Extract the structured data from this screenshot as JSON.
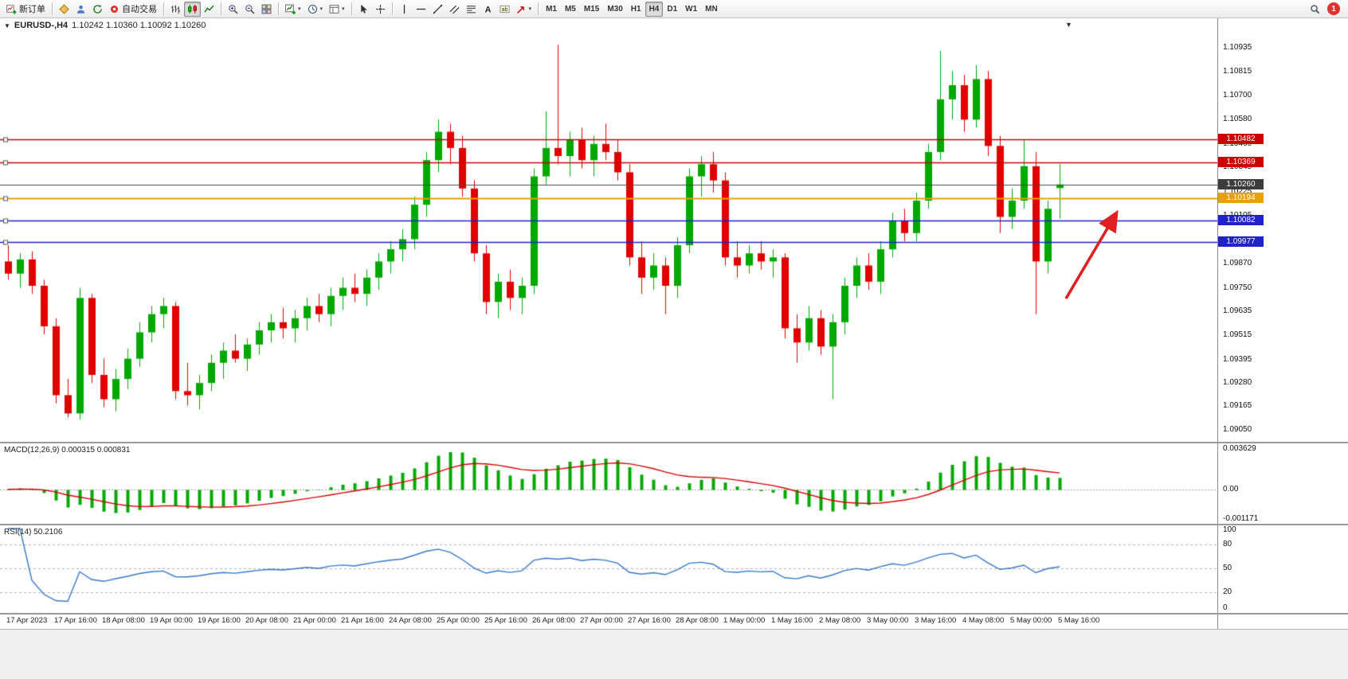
{
  "toolbar": {
    "groups": [
      {
        "items": [
          {
            "name": "new-order-button",
            "icon": "chart-plus",
            "label": "新订单"
          }
        ]
      },
      {
        "items": [
          {
            "name": "market-watch-button",
            "icon": "diamond"
          },
          {
            "name": "data-window-button",
            "icon": "person"
          },
          {
            "name": "refresh-button",
            "icon": "refresh"
          },
          {
            "name": "autotrading-button",
            "icon": "dot-red",
            "label": "自动交易"
          }
        ]
      },
      {
        "items": [
          {
            "name": "bar-chart-button",
            "icon": "bars"
          },
          {
            "name": "candlestick-chart-button",
            "icon": "candles",
            "active": true
          },
          {
            "name": "line-chart-button",
            "icon": "linechart"
          }
        ]
      },
      {
        "items": [
          {
            "name": "zoom-in-button",
            "icon": "zoom-in"
          },
          {
            "name": "zoom-out-button",
            "icon": "zoom-out"
          },
          {
            "name": "tile-windows-button",
            "icon": "tile"
          }
        ]
      },
      {
        "items": [
          {
            "name": "new-chart-button",
            "icon": "new-chart",
            "caret": true
          },
          {
            "name": "profiles-button",
            "icon": "clock",
            "caret": true
          },
          {
            "name": "templates-button",
            "icon": "template",
            "caret": true
          }
        ]
      },
      {
        "items": [
          {
            "name": "cursor-button",
            "icon": "cursor"
          },
          {
            "name": "crosshair-button",
            "icon": "crosshair"
          }
        ]
      },
      {
        "items": [
          {
            "name": "vertical-line-button",
            "icon": "vline"
          },
          {
            "name": "horizontal-line-button",
            "icon": "hline"
          },
          {
            "name": "trendline-button",
            "icon": "trendline"
          },
          {
            "name": "equidistant-channel-button",
            "icon": "channel"
          },
          {
            "name": "fibonacci-button",
            "icon": "fibo"
          },
          {
            "name": "text-button",
            "icon": "text-a"
          },
          {
            "name": "text-label-button",
            "icon": "label-t"
          },
          {
            "name": "arrows-button",
            "icon": "arrow-tool",
            "caret": true
          }
        ]
      }
    ],
    "timeframes": [
      "M1",
      "M5",
      "M15",
      "M30",
      "H1",
      "H4",
      "D1",
      "W1",
      "MN"
    ],
    "active_timeframe": "H4",
    "right": [
      {
        "name": "search-button",
        "icon": "magnifier"
      },
      {
        "name": "notification-badge",
        "label": "1"
      }
    ]
  },
  "chart": {
    "collapse_glyph": "▼",
    "symbol_period": "EURUSD-,H4",
    "ohlc_readout": "1.10242 1.10360 1.10092 1.10260",
    "shift_marker_glyph": "▼"
  },
  "price_axis": {
    "min": 1.0899,
    "max": 1.1108,
    "labels": [
      "1.10935",
      "1.10815",
      "1.10700",
      "1.10580",
      "1.10460",
      "1.10345",
      "1.10225",
      "1.10105",
      "1.09985",
      "1.09870",
      "1.09750",
      "1.09635",
      "1.09515",
      "1.09395",
      "1.09280",
      "1.09165",
      "1.09050"
    ]
  },
  "hlines": [
    {
      "value": 1.10482,
      "label": "1.10482",
      "color": "#cc0000",
      "badge": "#cc0000",
      "width": 1.6,
      "handle": true
    },
    {
      "value": 1.10369,
      "label": "1.10369",
      "color": "#cc0000",
      "badge": "#cc0000",
      "width": 1.6,
      "handle": true
    },
    {
      "value": 1.1026,
      "label": "1.10260",
      "color": "#4a4a4a",
      "badge": "#3c3c3c",
      "width": 1,
      "handle": false
    },
    {
      "value": 1.10194,
      "label": "1.10194",
      "color": "#e8a200",
      "badge": "#e8a200",
      "width": 2,
      "handle": true
    },
    {
      "value": 1.10082,
      "label": "1.10082",
      "color": "#2121cc",
      "badge": "#2121cc",
      "width": 1.6,
      "handle": true
    },
    {
      "value": 1.09977,
      "label": "1.09977",
      "color": "#2121cc",
      "badge": "#2121cc",
      "width": 1.6,
      "handle": true
    }
  ],
  "chart_data": {
    "type": "candlestick",
    "symbol": "EURUSD-",
    "timeframe": "H4",
    "up_color": "#00a800",
    "down_color": "#e00000",
    "candles": [
      [
        1.0988,
        1.0996,
        1.0979,
        1.0982
      ],
      [
        1.0982,
        1.0992,
        1.0975,
        1.0989
      ],
      [
        1.0989,
        1.0993,
        1.0972,
        1.0976
      ],
      [
        1.0976,
        1.0979,
        1.0952,
        1.0956
      ],
      [
        1.0956,
        1.096,
        1.0918,
        1.0922
      ],
      [
        1.0922,
        1.093,
        1.0911,
        1.0913
      ],
      [
        1.0913,
        1.0975,
        1.091,
        1.097
      ],
      [
        1.097,
        1.0972,
        1.0928,
        1.0932
      ],
      [
        1.0932,
        1.094,
        1.0916,
        1.092
      ],
      [
        1.092,
        1.0935,
        1.0914,
        1.093
      ],
      [
        1.093,
        1.0945,
        1.0925,
        1.094
      ],
      [
        1.094,
        1.0958,
        1.0936,
        1.0953
      ],
      [
        1.0953,
        1.0966,
        1.0948,
        1.0962
      ],
      [
        1.0962,
        1.097,
        1.0955,
        1.0966
      ],
      [
        1.0966,
        1.0968,
        1.092,
        1.0924
      ],
      [
        1.0924,
        1.0938,
        1.0917,
        1.0922
      ],
      [
        1.0922,
        1.0932,
        1.0915,
        1.0928
      ],
      [
        1.0928,
        1.0942,
        1.0924,
        1.0938
      ],
      [
        1.0938,
        1.0948,
        1.093,
        1.0944
      ],
      [
        1.0944,
        1.0952,
        1.0938,
        1.094
      ],
      [
        1.094,
        1.095,
        1.0934,
        1.0947
      ],
      [
        1.0947,
        1.0958,
        1.0942,
        1.0954
      ],
      [
        1.0954,
        1.0962,
        1.0948,
        1.0958
      ],
      [
        1.0958,
        1.0965,
        1.095,
        1.0955
      ],
      [
        1.0955,
        1.0964,
        1.0948,
        1.096
      ],
      [
        1.096,
        1.097,
        1.0954,
        1.0966
      ],
      [
        1.0966,
        1.0972,
        1.0958,
        1.0962
      ],
      [
        1.0962,
        1.0975,
        1.0956,
        1.0971
      ],
      [
        1.0971,
        1.098,
        1.0964,
        1.0975
      ],
      [
        1.0975,
        1.0982,
        1.0968,
        1.0972
      ],
      [
        1.0972,
        1.0984,
        1.0966,
        1.098
      ],
      [
        1.098,
        1.0992,
        1.0974,
        1.0988
      ],
      [
        1.0988,
        1.0998,
        1.0982,
        1.0994
      ],
      [
        1.0994,
        1.1004,
        1.0988,
        1.0999
      ],
      [
        1.0999,
        1.102,
        1.0994,
        1.1016
      ],
      [
        1.1016,
        1.1042,
        1.101,
        1.1038
      ],
      [
        1.1038,
        1.1058,
        1.1032,
        1.1052
      ],
      [
        1.1052,
        1.1056,
        1.1036,
        1.1044
      ],
      [
        1.1044,
        1.105,
        1.102,
        1.1024
      ],
      [
        1.1024,
        1.1028,
        1.0988,
        1.0992
      ],
      [
        1.0992,
        1.0996,
        1.0962,
        1.0968
      ],
      [
        1.0968,
        1.0982,
        1.096,
        1.0978
      ],
      [
        1.0978,
        1.0984,
        1.0964,
        1.097
      ],
      [
        1.097,
        1.098,
        1.0962,
        1.0976
      ],
      [
        1.0976,
        1.1034,
        1.0972,
        1.103
      ],
      [
        1.103,
        1.1062,
        1.1026,
        1.1044
      ],
      [
        1.1044,
        1.1095,
        1.1036,
        1.104
      ],
      [
        1.104,
        1.1052,
        1.103,
        1.1048
      ],
      [
        1.1048,
        1.1054,
        1.1034,
        1.1038
      ],
      [
        1.1038,
        1.105,
        1.103,
        1.1046
      ],
      [
        1.1046,
        1.1056,
        1.1038,
        1.1042
      ],
      [
        1.1042,
        1.1048,
        1.1028,
        1.1032
      ],
      [
        1.1032,
        1.1036,
        1.0986,
        1.099
      ],
      [
        1.099,
        1.0998,
        1.0972,
        1.098
      ],
      [
        1.098,
        1.0992,
        1.0974,
        1.0986
      ],
      [
        1.0986,
        1.099,
        1.0962,
        1.0976
      ],
      [
        1.0976,
        1.1,
        1.097,
        1.0996
      ],
      [
        1.0996,
        1.1034,
        1.0992,
        1.103
      ],
      [
        1.103,
        1.104,
        1.102,
        1.1036
      ],
      [
        1.1036,
        1.1042,
        1.1022,
        1.1028
      ],
      [
        1.1028,
        1.1032,
        1.0986,
        1.099
      ],
      [
        1.099,
        1.0998,
        1.098,
        1.0986
      ],
      [
        1.0986,
        1.0996,
        1.0982,
        1.0992
      ],
      [
        1.0992,
        1.0998,
        1.0984,
        1.0988
      ],
      [
        1.0988,
        1.0994,
        1.098,
        1.099
      ],
      [
        1.099,
        1.0992,
        1.095,
        1.0955
      ],
      [
        1.0955,
        1.0962,
        1.0938,
        1.0948
      ],
      [
        1.0948,
        1.0966,
        1.0944,
        1.096
      ],
      [
        1.096,
        1.0964,
        1.0942,
        1.0946
      ],
      [
        1.0946,
        1.0962,
        1.092,
        1.0958
      ],
      [
        1.0958,
        1.098,
        1.0952,
        1.0976
      ],
      [
        1.0976,
        1.099,
        1.097,
        1.0986
      ],
      [
        1.0986,
        1.0992,
        1.0974,
        1.0978
      ],
      [
        1.0978,
        1.0998,
        1.0972,
        1.0994
      ],
      [
        1.0994,
        1.1012,
        1.099,
        1.1008
      ],
      [
        1.1008,
        1.1014,
        1.0998,
        1.1002
      ],
      [
        1.1002,
        1.1022,
        1.0998,
        1.1018
      ],
      [
        1.1018,
        1.1046,
        1.1014,
        1.1042
      ],
      [
        1.1042,
        1.1092,
        1.1038,
        1.1068
      ],
      [
        1.1068,
        1.1082,
        1.1058,
        1.1075
      ],
      [
        1.1075,
        1.108,
        1.1052,
        1.1058
      ],
      [
        1.1058,
        1.1085,
        1.1054,
        1.1078
      ],
      [
        1.1078,
        1.1082,
        1.104,
        1.1045
      ],
      [
        1.1045,
        1.105,
        1.1002,
        1.101
      ],
      [
        1.101,
        1.1024,
        1.1004,
        1.1018
      ],
      [
        1.1018,
        1.1048,
        1.1014,
        1.1035
      ],
      [
        1.1035,
        1.1042,
        1.0962,
        1.0988
      ],
      [
        1.0988,
        1.1018,
        1.0982,
        1.1014
      ],
      [
        1.10242,
        1.1036,
        1.10092,
        1.1026
      ]
    ]
  },
  "macd": {
    "label": "MACD(12,26,9) 0.000315 0.000831",
    "params": [
      12,
      26,
      9
    ],
    "values_text": [
      "0.000315",
      "0.000831"
    ],
    "axis_labels": [
      "0.003629",
      "0.00",
      "-0.001171"
    ],
    "histogram_color": "#00a800",
    "signal_color": "#dd0000"
  },
  "rsi": {
    "label": "RSI(14) 50.2106",
    "period": 14,
    "value_text": "50.2106",
    "axis_labels": [
      "100",
      "80",
      "50",
      "20",
      "0"
    ],
    "levels": [
      80,
      50,
      20
    ],
    "line_color": "#3377cc"
  },
  "time_axis": {
    "labels": [
      "17 Apr 2023",
      "17 Apr 16:00",
      "18 Apr 08:00",
      "19 Apr 00:00",
      "19 Apr 16:00",
      "20 Apr 08:00",
      "21 Apr 00:00",
      "21 Apr 16:00",
      "24 Apr 08:00",
      "25 Apr 00:00",
      "25 Apr 16:00",
      "26 Apr 08:00",
      "27 Apr 00:00",
      "27 Apr 16:00",
      "28 Apr 08:00",
      "1 May 00:00",
      "1 May 16:00",
      "2 May 08:00",
      "3 May 00:00",
      "3 May 16:00",
      "4 May 08:00",
      "5 May 00:00",
      "5 May 16:00"
    ]
  },
  "annotation": {
    "type": "arrow",
    "color": "#e02020"
  }
}
